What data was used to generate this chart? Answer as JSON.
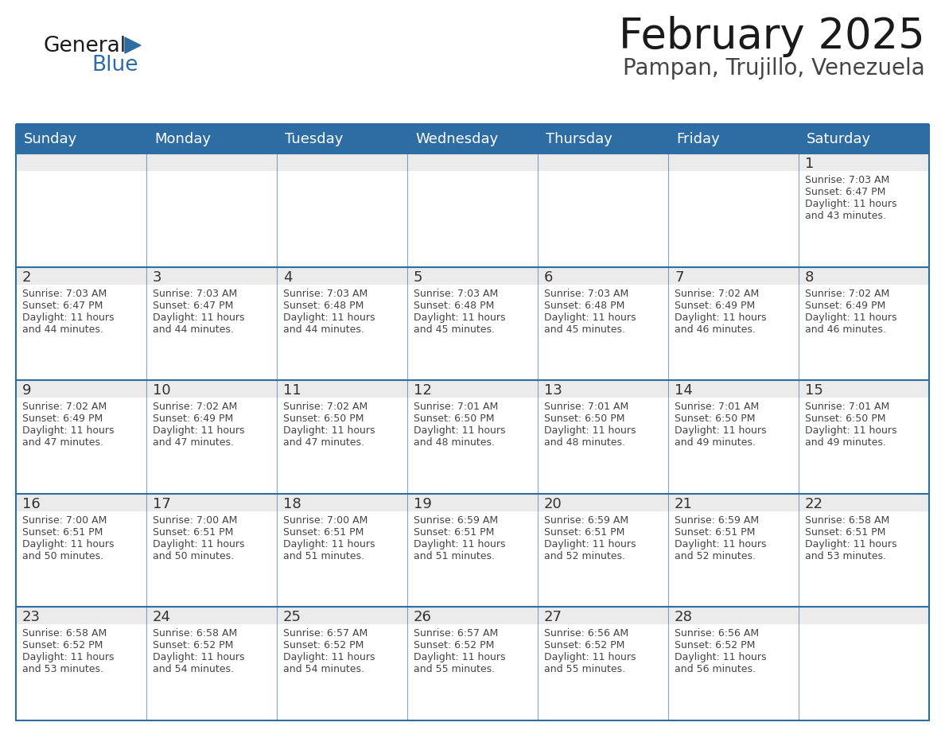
{
  "title": "February 2025",
  "subtitle": "Pampan, Trujillo, Venezuela",
  "header_bg_color": "#2E6DA4",
  "header_text_color": "#FFFFFF",
  "cell_top_bg_color": "#EBEBEB",
  "cell_body_bg_color": "#FFFFFF",
  "border_color": "#2E6DA4",
  "day_number_color": "#333333",
  "text_color": "#444444",
  "days_of_week": [
    "Sunday",
    "Monday",
    "Tuesday",
    "Wednesday",
    "Thursday",
    "Friday",
    "Saturday"
  ],
  "calendar_data": [
    [
      null,
      null,
      null,
      null,
      null,
      null,
      {
        "day": "1",
        "sunrise": "7:03 AM",
        "sunset": "6:47 PM",
        "daylight_line1": "Daylight: 11 hours",
        "daylight_line2": "and 43 minutes."
      }
    ],
    [
      {
        "day": "2",
        "sunrise": "7:03 AM",
        "sunset": "6:47 PM",
        "daylight_line1": "Daylight: 11 hours",
        "daylight_line2": "and 44 minutes."
      },
      {
        "day": "3",
        "sunrise": "7:03 AM",
        "sunset": "6:47 PM",
        "daylight_line1": "Daylight: 11 hours",
        "daylight_line2": "and 44 minutes."
      },
      {
        "day": "4",
        "sunrise": "7:03 AM",
        "sunset": "6:48 PM",
        "daylight_line1": "Daylight: 11 hours",
        "daylight_line2": "and 44 minutes."
      },
      {
        "day": "5",
        "sunrise": "7:03 AM",
        "sunset": "6:48 PM",
        "daylight_line1": "Daylight: 11 hours",
        "daylight_line2": "and 45 minutes."
      },
      {
        "day": "6",
        "sunrise": "7:03 AM",
        "sunset": "6:48 PM",
        "daylight_line1": "Daylight: 11 hours",
        "daylight_line2": "and 45 minutes."
      },
      {
        "day": "7",
        "sunrise": "7:02 AM",
        "sunset": "6:49 PM",
        "daylight_line1": "Daylight: 11 hours",
        "daylight_line2": "and 46 minutes."
      },
      {
        "day": "8",
        "sunrise": "7:02 AM",
        "sunset": "6:49 PM",
        "daylight_line1": "Daylight: 11 hours",
        "daylight_line2": "and 46 minutes."
      }
    ],
    [
      {
        "day": "9",
        "sunrise": "7:02 AM",
        "sunset": "6:49 PM",
        "daylight_line1": "Daylight: 11 hours",
        "daylight_line2": "and 47 minutes."
      },
      {
        "day": "10",
        "sunrise": "7:02 AM",
        "sunset": "6:49 PM",
        "daylight_line1": "Daylight: 11 hours",
        "daylight_line2": "and 47 minutes."
      },
      {
        "day": "11",
        "sunrise": "7:02 AM",
        "sunset": "6:50 PM",
        "daylight_line1": "Daylight: 11 hours",
        "daylight_line2": "and 47 minutes."
      },
      {
        "day": "12",
        "sunrise": "7:01 AM",
        "sunset": "6:50 PM",
        "daylight_line1": "Daylight: 11 hours",
        "daylight_line2": "and 48 minutes."
      },
      {
        "day": "13",
        "sunrise": "7:01 AM",
        "sunset": "6:50 PM",
        "daylight_line1": "Daylight: 11 hours",
        "daylight_line2": "and 48 minutes."
      },
      {
        "day": "14",
        "sunrise": "7:01 AM",
        "sunset": "6:50 PM",
        "daylight_line1": "Daylight: 11 hours",
        "daylight_line2": "and 49 minutes."
      },
      {
        "day": "15",
        "sunrise": "7:01 AM",
        "sunset": "6:50 PM",
        "daylight_line1": "Daylight: 11 hours",
        "daylight_line2": "and 49 minutes."
      }
    ],
    [
      {
        "day": "16",
        "sunrise": "7:00 AM",
        "sunset": "6:51 PM",
        "daylight_line1": "Daylight: 11 hours",
        "daylight_line2": "and 50 minutes."
      },
      {
        "day": "17",
        "sunrise": "7:00 AM",
        "sunset": "6:51 PM",
        "daylight_line1": "Daylight: 11 hours",
        "daylight_line2": "and 50 minutes."
      },
      {
        "day": "18",
        "sunrise": "7:00 AM",
        "sunset": "6:51 PM",
        "daylight_line1": "Daylight: 11 hours",
        "daylight_line2": "and 51 minutes."
      },
      {
        "day": "19",
        "sunrise": "6:59 AM",
        "sunset": "6:51 PM",
        "daylight_line1": "Daylight: 11 hours",
        "daylight_line2": "and 51 minutes."
      },
      {
        "day": "20",
        "sunrise": "6:59 AM",
        "sunset": "6:51 PM",
        "daylight_line1": "Daylight: 11 hours",
        "daylight_line2": "and 52 minutes."
      },
      {
        "day": "21",
        "sunrise": "6:59 AM",
        "sunset": "6:51 PM",
        "daylight_line1": "Daylight: 11 hours",
        "daylight_line2": "and 52 minutes."
      },
      {
        "day": "22",
        "sunrise": "6:58 AM",
        "sunset": "6:51 PM",
        "daylight_line1": "Daylight: 11 hours",
        "daylight_line2": "and 53 minutes."
      }
    ],
    [
      {
        "day": "23",
        "sunrise": "6:58 AM",
        "sunset": "6:52 PM",
        "daylight_line1": "Daylight: 11 hours",
        "daylight_line2": "and 53 minutes."
      },
      {
        "day": "24",
        "sunrise": "6:58 AM",
        "sunset": "6:52 PM",
        "daylight_line1": "Daylight: 11 hours",
        "daylight_line2": "and 54 minutes."
      },
      {
        "day": "25",
        "sunrise": "6:57 AM",
        "sunset": "6:52 PM",
        "daylight_line1": "Daylight: 11 hours",
        "daylight_line2": "and 54 minutes."
      },
      {
        "day": "26",
        "sunrise": "6:57 AM",
        "sunset": "6:52 PM",
        "daylight_line1": "Daylight: 11 hours",
        "daylight_line2": "and 55 minutes."
      },
      {
        "day": "27",
        "sunrise": "6:56 AM",
        "sunset": "6:52 PM",
        "daylight_line1": "Daylight: 11 hours",
        "daylight_line2": "and 55 minutes."
      },
      {
        "day": "28",
        "sunrise": "6:56 AM",
        "sunset": "6:52 PM",
        "daylight_line1": "Daylight: 11 hours",
        "daylight_line2": "and 56 minutes."
      },
      null
    ]
  ],
  "logo_text_general": "General",
  "logo_text_blue": "Blue",
  "logo_color_general": "#1a1a1a",
  "logo_color_blue": "#2E6DA4",
  "logo_triangle_color": "#2E6DA4",
  "title_color": "#1a1a1a",
  "subtitle_color": "#444444"
}
